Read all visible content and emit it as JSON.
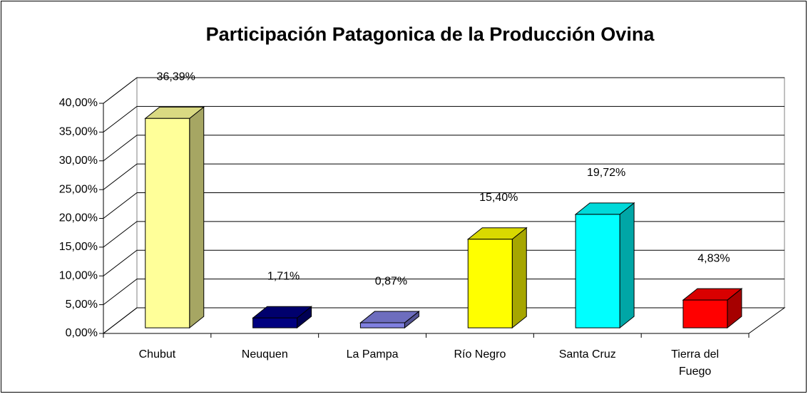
{
  "chart_data": {
    "type": "bar3d",
    "title": "Participación Patagonica de la Producción Ovina",
    "categories": [
      "Chubut",
      "Neuquen",
      "La Pampa",
      "Río Negro",
      "Santa Cruz",
      "Tierra del Fuego"
    ],
    "values": [
      36.39,
      1.71,
      0.87,
      15.4,
      19.72,
      4.83
    ],
    "value_labels": [
      "36,39%",
      "1,71%",
      "0,87%",
      "15,40%",
      "19,72%",
      "4,83%"
    ],
    "colors": [
      "#ffff99",
      "#000080",
      "#8080e0",
      "#ffff00",
      "#00ffff",
      "#ff0000"
    ],
    "ylim": [
      0,
      40
    ],
    "yticks": [
      {
        "value": 0,
        "label": "0,00%"
      },
      {
        "value": 5,
        "label": "5,00%"
      },
      {
        "value": 10,
        "label": "10,00%"
      },
      {
        "value": 15,
        "label": "15,00%"
      },
      {
        "value": 20,
        "label": "20,00%"
      },
      {
        "value": 25,
        "label": "25,00%"
      },
      {
        "value": 30,
        "label": "30,00%"
      },
      {
        "value": 35,
        "label": "35,00%"
      },
      {
        "value": 40,
        "label": "40,00%"
      }
    ],
    "grid": true
  }
}
